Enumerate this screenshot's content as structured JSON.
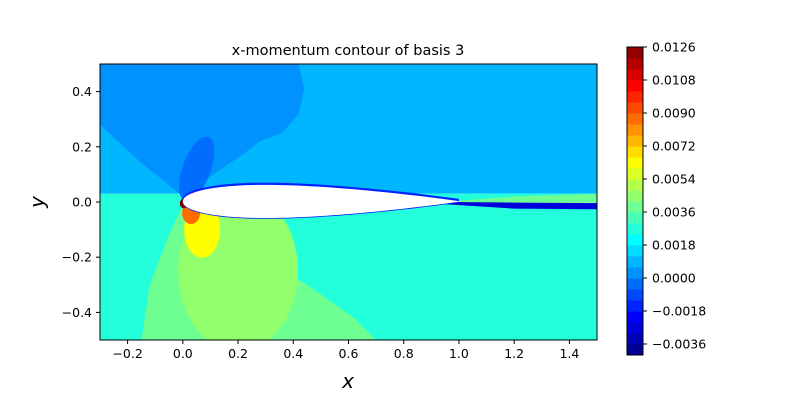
{
  "chart_data": {
    "type": "heatmap",
    "subtype": "filled-contour",
    "title": "x-momentum contour of basis 3",
    "xlabel": "x",
    "ylabel": "y",
    "xlim": [
      -0.3,
      1.5
    ],
    "ylim": [
      -0.5,
      0.5
    ],
    "xticks": [
      -0.2,
      0.0,
      0.2,
      0.4,
      0.6,
      0.8,
      1.0,
      1.2,
      1.4
    ],
    "xtick_labels": [
      "−0.2",
      "0.0",
      "0.2",
      "0.4",
      "0.6",
      "0.8",
      "1.0",
      "1.2",
      "1.4"
    ],
    "yticks": [
      0.4,
      0.2,
      0.0,
      -0.2,
      -0.4
    ],
    "ytick_labels": [
      "0.4",
      "0.2",
      "0.0",
      "−0.2",
      "−0.4"
    ],
    "colormap": "jet",
    "grid": false,
    "colorbar": {
      "vmin": -0.0042,
      "vmax": 0.0126,
      "ticks": [
        0.0126,
        0.0108,
        0.009,
        0.0072,
        0.0054,
        0.0036,
        0.0018,
        0.0,
        -0.0018,
        -0.0036
      ],
      "tick_labels": [
        "0.0126",
        "0.0108",
        "0.0090",
        "0.0072",
        "0.0054",
        "0.0036",
        "0.0018",
        "0.0000",
        "−0.0018",
        "−0.0036"
      ]
    },
    "regions": [
      {
        "name": "upper-freestream",
        "x_range": [
          -0.3,
          1.5
        ],
        "y_range": [
          0.03,
          0.5
        ],
        "value": 0.0009
      },
      {
        "name": "lower-freestream",
        "x_range": [
          -0.3,
          1.5
        ],
        "y_range": [
          -0.5,
          0.03
        ],
        "value": 0.0027
      },
      {
        "name": "upper-leading-edge-lobe",
        "center": [
          0.1,
          0.22
        ],
        "value": 0.0003
      },
      {
        "name": "upper-leading-edge-core",
        "center": [
          0.05,
          0.12
        ],
        "value": -0.0003
      },
      {
        "name": "lower-leading-edge-lobe",
        "center": [
          0.15,
          -0.22
        ],
        "value": 0.0045
      },
      {
        "name": "stagnation-peak",
        "center": [
          0.0,
          -0.005
        ],
        "value": 0.0126
      },
      {
        "name": "upper-surface-boundary-layer",
        "x_range": [
          0.0,
          1.0
        ],
        "value": -0.0018
      },
      {
        "name": "wake-center",
        "x_range": [
          1.0,
          1.5
        ],
        "y": -0.01,
        "value": -0.0027
      },
      {
        "name": "wake-upper-shear",
        "x_range": [
          1.2,
          1.5
        ],
        "y": 0.02,
        "value": 0.0036
      }
    ],
    "masked_region": "airfoil body (chord 0 to 1)"
  }
}
